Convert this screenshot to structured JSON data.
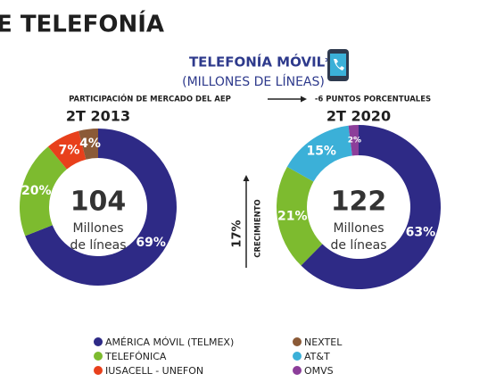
{
  "header": "E TELEFONÍA",
  "title": "TELEFONÍA MÓVIL*",
  "subtitle": "(MILLONES DE LÍNEAS)",
  "note_left": "PARTICIPACIÓN DE MERCADO DEL AEP",
  "note_right": "-6 PUNTOS PORCENTUALES",
  "growth": "17%",
  "growth_label": "CRECIMIENTO",
  "legend": [
    {
      "name": "AMÉRICA MÓVIL (TELMEX)",
      "color": "#2e2a86"
    },
    {
      "name": "TELEFÓNICA",
      "color": "#7dbb2f"
    },
    {
      "name": "IUSACELL - UNEFON",
      "color": "#e8401c"
    },
    {
      "name": "NEXTEL",
      "color": "#8b5a37"
    },
    {
      "name": "AT&T",
      "color": "#3bb0d8"
    },
    {
      "name": "OMVS",
      "color": "#8c3e9a"
    }
  ],
  "chart_data": [
    {
      "type": "pie",
      "title": "2T 2013",
      "center_value": "104",
      "center_label": [
        "Millones",
        "de líneas"
      ],
      "values": [
        69,
        20,
        7,
        4,
        null,
        null
      ],
      "value_labels": [
        "69%",
        "20%",
        "7%",
        "4%",
        null,
        null
      ]
    },
    {
      "type": "pie",
      "title": "2T 2020",
      "center_value": "122",
      "center_label": [
        "Millones",
        "de líneas"
      ],
      "values": [
        63,
        21,
        null,
        null,
        15,
        2
      ],
      "value_labels": [
        "63%",
        "21%",
        null,
        null,
        "15%",
        "2%"
      ]
    }
  ]
}
